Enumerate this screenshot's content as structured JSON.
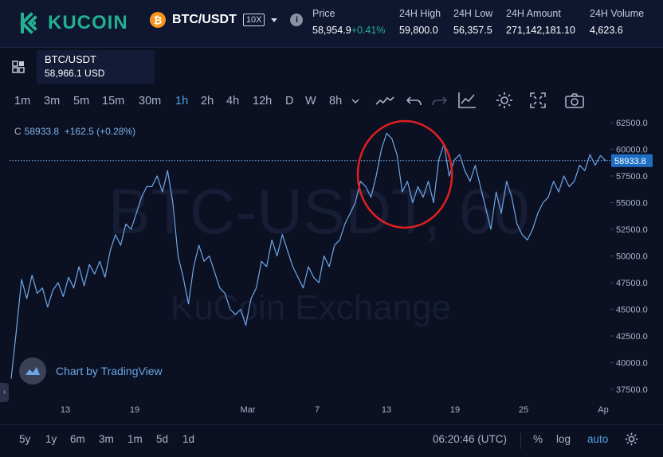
{
  "brand": {
    "name": "KUCOIN",
    "color": "#23af91"
  },
  "header": {
    "pair": "BTC/USDT",
    "leverage": "10X",
    "coin_symbol": "₿",
    "stats": [
      {
        "label": "Price",
        "value": "58,954.9",
        "change": "+0.41%"
      },
      {
        "label": "24H High",
        "value": "59,800.0"
      },
      {
        "label": "24H Low",
        "value": "56,357.5"
      },
      {
        "label": "24H Amount",
        "value": "271,142,181.10"
      },
      {
        "label": "24H Volume",
        "value": "4,623.6"
      }
    ]
  },
  "symbol_tab": {
    "title": "BTC/USDT",
    "price": "58,966.1 USD"
  },
  "toolbar": {
    "intervals": [
      "1m",
      "3m",
      "5m",
      "15m",
      "30m",
      "1h",
      "2h",
      "4h",
      "12h",
      "D",
      "W",
      "8h"
    ],
    "active_interval": "1h"
  },
  "legend": {
    "symbol": "C",
    "close": "58933.8",
    "change": "+162.5 (+0.28%)"
  },
  "tradingview": {
    "label": "Chart by TradingView"
  },
  "bottom": {
    "ranges": [
      "5y",
      "1y",
      "6m",
      "3m",
      "1m",
      "5d",
      "1d"
    ],
    "time": "06:20:46 (UTC)",
    "percent": "%",
    "log": "log",
    "auto": "auto"
  },
  "chart_data": {
    "type": "line",
    "watermark": [
      "BTC-USDT, 60",
      "KuCoin Exchange"
    ],
    "x_ticks": [
      "13",
      "19",
      "Mar",
      "7",
      "13",
      "19",
      "25",
      "Ap"
    ],
    "y_ticks": [
      "62500.0",
      "60000.0",
      "57500.0",
      "55000.0",
      "52500.0",
      "50000.0",
      "47500.0",
      "45000.0",
      "42500.0",
      "40000.0",
      "37500.0"
    ],
    "ylim": [
      37000,
      63000
    ],
    "last_price_label": "58933.8",
    "last_price": 58933.8,
    "series": [
      {
        "values": [
          38500,
          43000,
          47800,
          46000,
          48200,
          46500,
          47000,
          45200,
          46800,
          47500,
          46200,
          48000,
          47000,
          49000,
          47200,
          49200,
          48300,
          49500,
          48000,
          50500,
          52000,
          51000,
          53000,
          52500,
          54000,
          55500,
          56500,
          56500,
          57500,
          56000,
          58000,
          55000,
          50000,
          48000,
          45500,
          49000,
          51000,
          49500,
          50000,
          48500,
          47000,
          46500,
          45000,
          44500,
          45000,
          43500,
          46000,
          47000,
          49500,
          49000,
          51500,
          50000,
          52000,
          50500,
          49000,
          48000,
          47000,
          49000,
          48000,
          47500,
          50000,
          49000,
          51000,
          51500,
          53000,
          54000,
          55000,
          57000,
          56500,
          55500,
          57500,
          60000,
          61500,
          61000,
          59500,
          56000,
          57000,
          55000,
          56500,
          55500,
          57000,
          55000,
          59000,
          60500,
          57500,
          59000,
          59500,
          58000,
          57000,
          58500,
          56500,
          54500,
          52500,
          56000,
          54000,
          57000,
          55500,
          53000,
          52000,
          51500,
          52500,
          54000,
          55000,
          55500,
          57000,
          56000,
          57500,
          56500,
          57000,
          58500,
          58000,
          59500,
          58500,
          59400,
          58934
        ]
      }
    ],
    "annotation": {
      "shape": "ellipse",
      "color": "#e02020",
      "x_index_range": [
        68,
        83
      ]
    }
  }
}
